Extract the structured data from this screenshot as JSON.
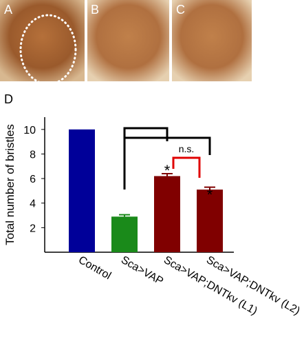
{
  "panel_labels": [
    "A",
    "B",
    "C"
  ],
  "chart_data": {
    "type": "bar",
    "label": "D",
    "y_label": "Total number of bristles",
    "categories": [
      "Control",
      "Sca>VAP",
      "Sca>VAP;DNTkv (L1)",
      "Sca>VAP;DNTkv (L2)"
    ],
    "values": [
      10,
      2.9,
      6.2,
      5.1
    ],
    "errors": [
      null,
      0.15,
      0.2,
      0.2
    ],
    "colors": [
      "#000099",
      "#1a8a1a",
      "#800000",
      "#800000"
    ],
    "ylim": [
      0,
      11
    ],
    "yticks": [
      2,
      4,
      6,
      8,
      10
    ],
    "annotations": [
      "*",
      "*",
      "n.s."
    ]
  }
}
